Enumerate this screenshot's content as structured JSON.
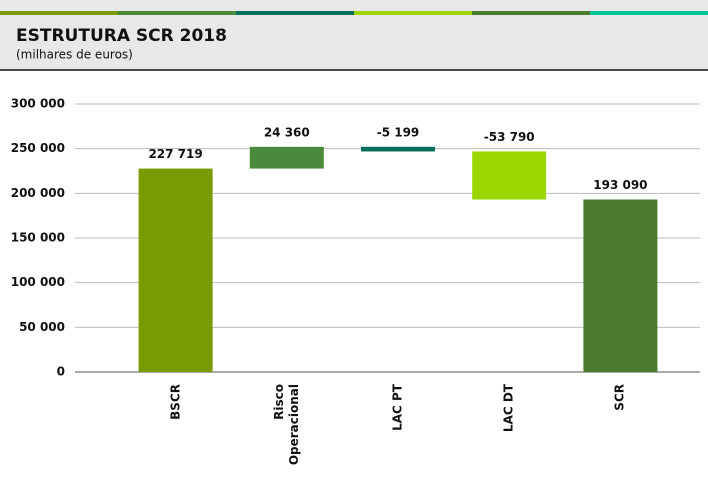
{
  "chart_data": {
    "type": "waterfall",
    "title": "ESTRUTURA SCR 2018",
    "subtitle": "(milhares de euros)",
    "categories": [
      "BSCR",
      "Risco Operacional",
      "LAC PT",
      "LAC DT",
      "SCR"
    ],
    "values": [
      227719,
      24360,
      -5199,
      -53790,
      193090
    ],
    "value_labels": [
      "227 719",
      "24 360",
      "-5 199",
      "-53 790",
      "193 090"
    ],
    "measures": [
      "absolute",
      "relative",
      "relative",
      "relative",
      "total"
    ],
    "colors": [
      "#7a9a01",
      "#4b8a3c",
      "#006e5c",
      "#9bd600",
      "#4b7c2e"
    ],
    "ylim": [
      0,
      300000
    ],
    "yticks": [
      0,
      {
        "value": 50000,
        "label": "50 000"
      },
      {
        "value": 100000,
        "label": "100 000"
      },
      {
        "value": 150000,
        "label": "150 000"
      },
      {
        "value": 200000,
        "label": "200 000"
      },
      {
        "value": 250000,
        "label": "250 000"
      },
      {
        "value": 300000,
        "label": "300 000"
      }
    ],
    "grid": true
  }
}
